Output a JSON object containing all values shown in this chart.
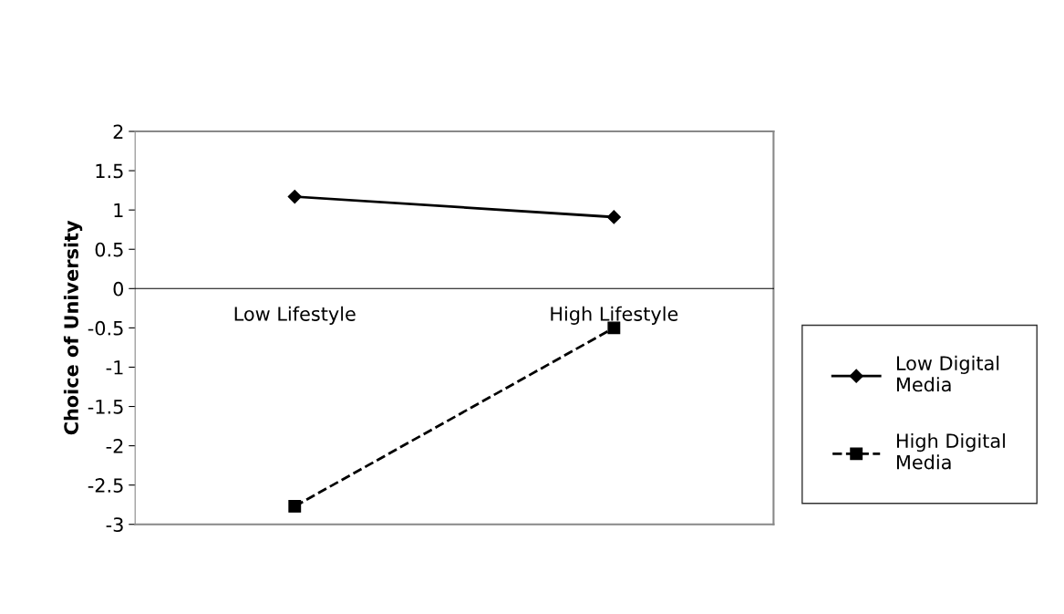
{
  "chart_data": {
    "type": "line",
    "ylabel": "Choice of University",
    "categories": [
      "Low Lifestyle",
      "High Lifestyle"
    ],
    "series": [
      {
        "name": "Low Digital Media",
        "color": "#000000",
        "values": [
          1.17,
          0.91
        ],
        "marker": "diamond",
        "line_style": "solid"
      },
      {
        "name": "High Digital Media",
        "color": "#000000",
        "values": [
          -2.77,
          -0.5
        ],
        "marker": "square",
        "line_style": "dashed"
      }
    ],
    "ylim": [
      -3,
      2
    ],
    "yticks": [
      -3,
      -2.5,
      -2,
      -1.5,
      -1,
      -0.5,
      0,
      0.5,
      1,
      1.5,
      2
    ],
    "grid": false,
    "legend": "right"
  }
}
